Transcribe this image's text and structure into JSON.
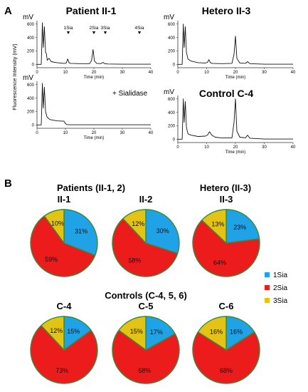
{
  "panel_a": {
    "label": "A",
    "y_axis_title": "Fluorescence Intensity (mV)",
    "chromatograms": [
      {
        "title": "Patient II-1",
        "unit": "mV",
        "xlabel": "Time (min)"
      },
      {
        "title": "",
        "unit": "mV",
        "xlabel": "Time (min)",
        "note": "+ Sialidase"
      },
      {
        "title": "Hetero II-3",
        "unit": "mV",
        "xlabel": "Time (min)"
      },
      {
        "title": "Control C-4",
        "unit": "mV",
        "xlabel": "Time (min)"
      }
    ],
    "peak_markers": [
      "1Sia",
      "2Sia",
      "3Sia",
      "4Sia"
    ]
  },
  "panel_b": {
    "label": "B",
    "group_titles": [
      "Patients (II-1, 2)",
      "Hetero (II-3)",
      "Controls (C-4, 5, 6)"
    ],
    "legend": [
      "1Sia",
      "2Sia",
      "3Sia"
    ]
  },
  "chart_data": [
    {
      "type": "line",
      "title": "Patient II-1",
      "ylabel": "mV",
      "xlabel": "Time (min)",
      "xlim": [
        0,
        40
      ],
      "ylim": [
        -50,
        650
      ],
      "xticks": [
        0,
        10,
        20,
        30,
        40
      ],
      "yticks": [
        0,
        200,
        400,
        600
      ],
      "x": [
        0,
        1.5,
        1.9,
        2.2,
        2.6,
        3.0,
        3.3,
        3.6,
        4.2,
        5,
        7,
        9.5,
        10.3,
        10.8,
        11.3,
        12,
        15,
        18.5,
        19.2,
        19.7,
        20.2,
        21,
        22.5,
        23.2,
        23.8,
        25,
        30,
        35,
        40
      ],
      "y": [
        0,
        0,
        620,
        250,
        560,
        180,
        160,
        60,
        90,
        40,
        25,
        15,
        20,
        80,
        20,
        15,
        10,
        10,
        60,
        220,
        50,
        15,
        10,
        30,
        10,
        5,
        2,
        2,
        2
      ],
      "markers": [
        {
          "label": "1Sia",
          "x": 11
        },
        {
          "label": "2Sia",
          "x": 20
        },
        {
          "label": "3Sia",
          "x": 24
        },
        {
          "label": "4Sia",
          "x": 36
        }
      ]
    },
    {
      "type": "line",
      "title": "",
      "note": "+ Sialidase",
      "ylabel": "mV",
      "xlabel": "Time (min)",
      "xlim": [
        0,
        40
      ],
      "ylim": [
        -50,
        650
      ],
      "xticks": [
        0,
        10,
        20,
        30,
        40
      ],
      "yticks": [
        0,
        200,
        400,
        600
      ],
      "x": [
        0,
        1.5,
        1.9,
        2.2,
        2.6,
        3.0,
        3.5,
        4.5,
        7,
        9.5,
        10,
        10.5,
        11.5,
        15,
        20,
        30,
        40
      ],
      "y": [
        0,
        0,
        620,
        250,
        560,
        200,
        120,
        80,
        60,
        55,
        20,
        5,
        2,
        2,
        2,
        2,
        2
      ]
    },
    {
      "type": "line",
      "title": "Hetero II-3",
      "ylabel": "mV",
      "xlabel": "Time (min)",
      "xlim": [
        0,
        40
      ],
      "ylim": [
        -50,
        650
      ],
      "xticks": [
        0,
        10,
        20,
        30,
        40
      ],
      "yticks": [
        0,
        200,
        400,
        600
      ],
      "x": [
        0,
        1.5,
        1.9,
        2.2,
        2.6,
        3.0,
        3.5,
        4.5,
        7,
        9.5,
        10.3,
        10.8,
        11.3,
        12,
        15,
        18.8,
        19.5,
        20,
        20.5,
        21.5,
        23.5,
        24.2,
        25,
        30,
        40
      ],
      "y": [
        0,
        0,
        600,
        250,
        560,
        180,
        80,
        50,
        25,
        20,
        30,
        70,
        25,
        15,
        10,
        15,
        150,
        420,
        90,
        20,
        15,
        40,
        10,
        2,
        2
      ]
    },
    {
      "type": "line",
      "title": "Control C-4",
      "ylabel": "mV",
      "xlabel": "Time (min)",
      "xlim": [
        0,
        40
      ],
      "ylim": [
        -50,
        650
      ],
      "xticks": [
        0,
        10,
        20,
        30,
        40
      ],
      "yticks": [
        0,
        200,
        400,
        600
      ],
      "x": [
        0,
        1.5,
        1.9,
        2.2,
        2.6,
        3.0,
        3.5,
        4.5,
        7,
        9.5,
        10.3,
        11,
        11.8,
        13,
        15,
        18.8,
        19.5,
        20,
        20.5,
        21.5,
        23.5,
        24.2,
        25,
        30,
        40
      ],
      "y": [
        0,
        0,
        600,
        250,
        560,
        180,
        80,
        60,
        40,
        45,
        60,
        110,
        60,
        30,
        20,
        20,
        250,
        600,
        120,
        30,
        20,
        60,
        15,
        2,
        2
      ]
    },
    {
      "type": "pie",
      "title": "II-1",
      "labels": [
        "1Sia",
        "2Sia",
        "3Sia"
      ],
      "values": [
        31,
        59,
        10
      ],
      "value_labels": [
        "31%",
        "59%",
        "10%"
      ],
      "colors": [
        "#1fa2e6",
        "#ec1c1c",
        "#e3c313"
      ]
    },
    {
      "type": "pie",
      "title": "II-2",
      "labels": [
        "1Sia",
        "2Sia",
        "3Sia"
      ],
      "values": [
        30,
        58,
        12
      ],
      "value_labels": [
        "30%",
        "58%",
        "12%"
      ],
      "colors": [
        "#1fa2e6",
        "#ec1c1c",
        "#e3c313"
      ]
    },
    {
      "type": "pie",
      "title": "II-3",
      "labels": [
        "1Sia",
        "2Sia",
        "3Sia"
      ],
      "values": [
        23,
        64,
        13
      ],
      "value_labels": [
        "23%",
        "64%",
        "13%"
      ],
      "colors": [
        "#1fa2e6",
        "#ec1c1c",
        "#e3c313"
      ]
    },
    {
      "type": "pie",
      "title": "C-4",
      "labels": [
        "1Sia",
        "2Sia",
        "3Sia"
      ],
      "values": [
        15,
        73,
        12
      ],
      "value_labels": [
        "15%",
        "73%",
        "12%"
      ],
      "colors": [
        "#1fa2e6",
        "#ec1c1c",
        "#e3c313"
      ]
    },
    {
      "type": "pie",
      "title": "C-5",
      "labels": [
        "1Sia",
        "2Sia",
        "3Sia"
      ],
      "values": [
        17,
        68,
        15
      ],
      "value_labels": [
        "17%",
        "68%",
        "15%"
      ],
      "colors": [
        "#1fa2e6",
        "#ec1c1c",
        "#e3c313"
      ]
    },
    {
      "type": "pie",
      "title": "C-6",
      "labels": [
        "1Sia",
        "2Sia",
        "3Sia"
      ],
      "values": [
        16,
        68,
        16
      ],
      "value_labels": [
        "16%",
        "68%",
        "16%"
      ],
      "colors": [
        "#1fa2e6",
        "#ec1c1c",
        "#e3c313"
      ]
    }
  ]
}
